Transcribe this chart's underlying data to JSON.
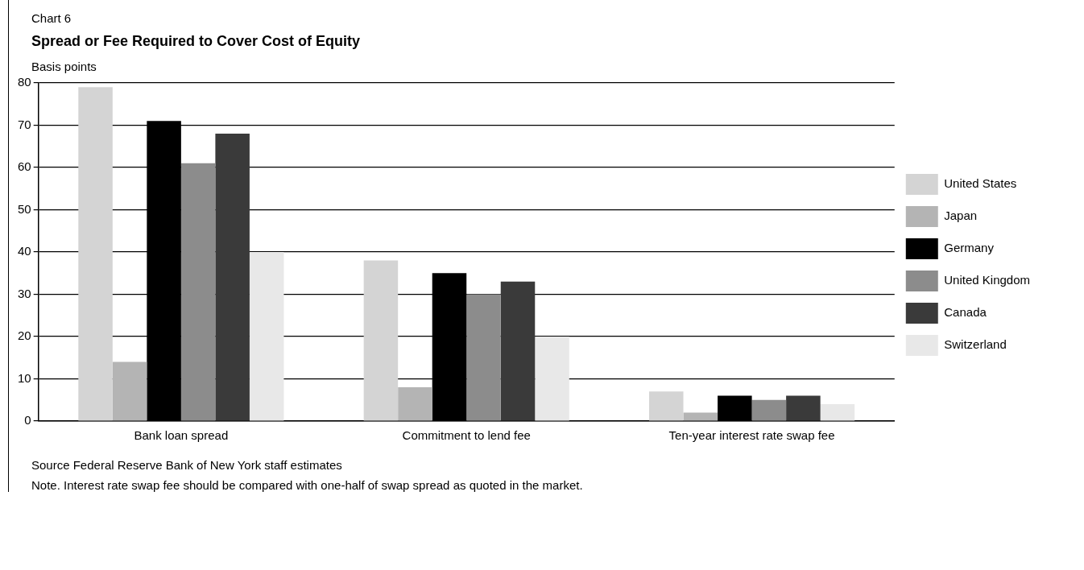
{
  "chart_data": {
    "type": "bar",
    "subtitle": "Chart 6",
    "title": "Spread or Fee Required to Cover Cost of Equity",
    "ylabel": "Basis points",
    "categories": [
      "Bank loan spread",
      "Commitment to lend fee",
      "Ten-year interest rate swap fee"
    ],
    "series": [
      {
        "name": "United States",
        "color": "#d4d4d4",
        "values": [
          79,
          38,
          7
        ]
      },
      {
        "name": "Japan",
        "color": "#b4b4b4",
        "values": [
          14,
          8,
          2
        ]
      },
      {
        "name": "Germany",
        "color": "#000000",
        "values": [
          71,
          35,
          6
        ]
      },
      {
        "name": "United Kingdom",
        "color": "#8c8c8c",
        "values": [
          61,
          30,
          5
        ]
      },
      {
        "name": "Canada",
        "color": "#3a3a3a",
        "values": [
          68,
          33,
          6
        ]
      },
      {
        "name": "Switzerland",
        "color": "#e8e8e8",
        "values": [
          40,
          20,
          4
        ]
      }
    ],
    "ylim": [
      0,
      80
    ],
    "yticks": [
      0,
      10,
      20,
      30,
      40,
      50,
      60,
      70,
      80
    ],
    "grid": "y",
    "legend": "right",
    "annotations": [
      "Source   Federal Reserve Bank of New York staff estimates",
      "Note. Interest rate swap fee should be compared with one-half of swap spread as quoted in the market."
    ]
  }
}
